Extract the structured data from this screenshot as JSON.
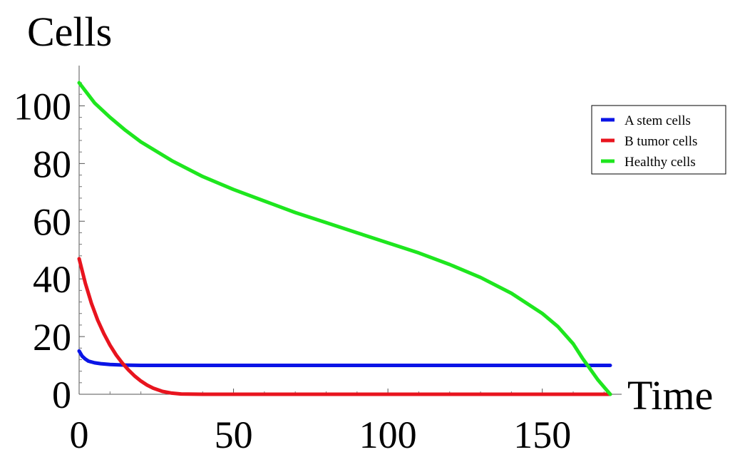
{
  "chart_data": {
    "type": "line",
    "xlabel": "Time",
    "ylabel": "Cells",
    "xlim": [
      0,
      172
    ],
    "ylim": [
      0,
      110
    ],
    "xticks": [
      0,
      50,
      100,
      150
    ],
    "yticks": [
      0,
      20,
      40,
      60,
      80,
      100
    ],
    "grid": false,
    "legend_position": "top-right",
    "series": [
      {
        "name": "A stem cells",
        "color": "#0a14e6",
        "x": [
          0,
          1,
          2,
          3,
          5,
          7,
          10,
          15,
          20,
          30,
          50,
          100,
          150,
          172
        ],
        "y": [
          15,
          13.2,
          12.2,
          11.5,
          10.9,
          10.6,
          10.3,
          10.1,
          10.0,
          10.0,
          10.0,
          10.0,
          10.0,
          10.0
        ]
      },
      {
        "name": "B tumor cells",
        "color": "#e8141e",
        "x": [
          0,
          2,
          4,
          6,
          8,
          10,
          12,
          14,
          16,
          18,
          20,
          22,
          24,
          27,
          30,
          33,
          40,
          60,
          100,
          150,
          172
        ],
        "y": [
          47,
          38.5,
          31.5,
          25.7,
          21.0,
          17.0,
          13.6,
          10.8,
          8.4,
          6.3,
          4.6,
          3.2,
          2.1,
          1.0,
          0.4,
          0.1,
          0,
          0,
          0,
          0,
          0
        ]
      },
      {
        "name": "Healthy cells",
        "color": "#1ee61e",
        "x": [
          0,
          5,
          10,
          15,
          20,
          30,
          40,
          50,
          60,
          70,
          80,
          90,
          100,
          110,
          120,
          130,
          140,
          150,
          155,
          160,
          163,
          166,
          168,
          170,
          172
        ],
        "y": [
          108,
          101,
          96,
          91.5,
          87.5,
          81,
          75.5,
          71,
          67,
          63,
          59.5,
          56,
          52.5,
          49,
          45,
          40.5,
          35,
          28,
          23.5,
          17.5,
          12.5,
          8,
          5,
          2.5,
          0
        ]
      }
    ]
  }
}
